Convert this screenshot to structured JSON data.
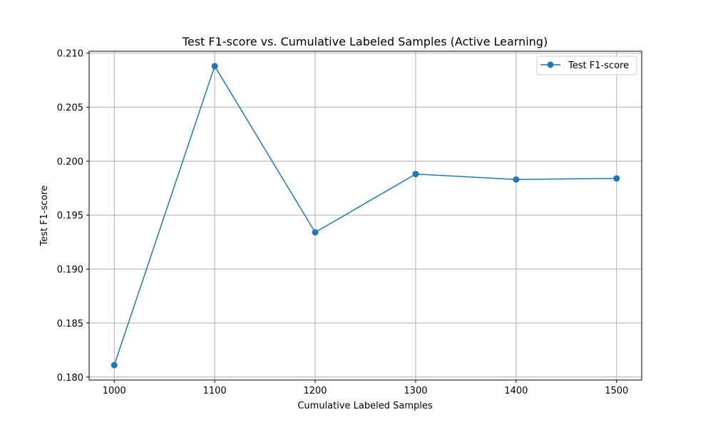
{
  "chart_data": {
    "type": "line",
    "title": "Test F1-score vs. Cumulative Labeled Samples (Active Learning)",
    "xlabel": "Cumulative Labeled Samples",
    "ylabel": "Test F1-score",
    "x": [
      1000,
      1100,
      1200,
      1300,
      1400,
      1500
    ],
    "series": [
      {
        "name": "Test F1-score",
        "color": "#1f77b4",
        "marker": "circle",
        "values": [
          0.1811,
          0.2088,
          0.1934,
          0.1988,
          0.1983,
          0.1984
        ]
      }
    ],
    "xticks": [
      "1000",
      "1100",
      "1200",
      "1300",
      "1400",
      "1500"
    ],
    "yticks": [
      "0.180",
      "0.185",
      "0.190",
      "0.195",
      "0.200",
      "0.205",
      "0.210"
    ],
    "xlim": [
      975,
      1525
    ],
    "ylim": [
      0.17972,
      0.21018
    ],
    "grid": true,
    "legend_position": "top-right"
  }
}
